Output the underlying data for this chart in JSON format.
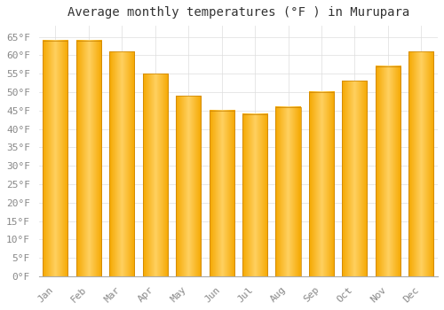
{
  "title": "Average monthly temperatures (°F ) in Murupara",
  "months": [
    "Jan",
    "Feb",
    "Mar",
    "Apr",
    "May",
    "Jun",
    "Jul",
    "Aug",
    "Sep",
    "Oct",
    "Nov",
    "Dec"
  ],
  "values": [
    64,
    64,
    61,
    55,
    49,
    45,
    44,
    46,
    50,
    53,
    57,
    61
  ],
  "bar_color_left": "#F5A800",
  "bar_color_mid": "#FFD060",
  "bar_color_right": "#F5A800",
  "background_color": "#FFFFFF",
  "grid_color": "#DDDDDD",
  "ylim": [
    0,
    68
  ],
  "yticks": [
    0,
    5,
    10,
    15,
    20,
    25,
    30,
    35,
    40,
    45,
    50,
    55,
    60,
    65
  ],
  "ytick_labels": [
    "0°F",
    "5°F",
    "10°F",
    "15°F",
    "20°F",
    "25°F",
    "30°F",
    "35°F",
    "40°F",
    "45°F",
    "50°F",
    "55°F",
    "60°F",
    "65°F"
  ],
  "title_fontsize": 10,
  "tick_fontsize": 8,
  "tick_color": "#888888"
}
